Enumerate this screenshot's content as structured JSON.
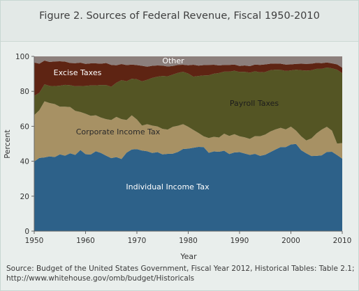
{
  "figure": {
    "title": "Figure 2. Sources of Federal Revenue, Fiscal 1950-2010",
    "source_line1": "Source: Budget of the United States Government, Fiscal Year 2012, Historical Tables: Table 2.1;",
    "source_line2": "http://www.whitehouse.gov/omb/budget/Historicals"
  },
  "chart_data": {
    "type": "area",
    "stacked": true,
    "xlabel": "Year",
    "ylabel": "Percent",
    "xlim": [
      1950,
      2010
    ],
    "ylim": [
      0,
      100
    ],
    "x_ticks": [
      1950,
      1960,
      1970,
      1980,
      1990,
      2000,
      2010
    ],
    "y_ticks": [
      0,
      20,
      40,
      60,
      80,
      100
    ],
    "x": [
      1950,
      1951,
      1952,
      1953,
      1954,
      1955,
      1956,
      1957,
      1958,
      1959,
      1960,
      1961,
      1962,
      1963,
      1964,
      1965,
      1966,
      1967,
      1968,
      1969,
      1970,
      1971,
      1972,
      1973,
      1974,
      1975,
      1976,
      1977,
      1978,
      1979,
      1980,
      1981,
      1982,
      1983,
      1984,
      1985,
      1986,
      1987,
      1988,
      1989,
      1990,
      1991,
      1992,
      1993,
      1994,
      1995,
      1996,
      1997,
      1998,
      1999,
      2000,
      2001,
      2002,
      2003,
      2004,
      2005,
      2006,
      2007,
      2008,
      2009,
      2010
    ],
    "series": [
      {
        "name": "Individual Income Tax",
        "color": "#2d6189",
        "values": [
          39.9,
          41.9,
          42.2,
          42.8,
          42.4,
          43.9,
          43.2,
          44.5,
          43.6,
          46.4,
          44.0,
          43.8,
          45.7,
          44.7,
          43.2,
          41.8,
          42.4,
          41.3,
          44.9,
          46.7,
          46.9,
          46.1,
          45.7,
          44.7,
          45.2,
          43.9,
          44.2,
          44.3,
          45.3,
          47.0,
          47.2,
          47.7,
          48.2,
          48.1,
          44.8,
          45.6,
          45.4,
          46.0,
          44.1,
          45.0,
          45.2,
          44.4,
          43.6,
          44.2,
          43.1,
          43.7,
          45.2,
          46.7,
          48.1,
          48.1,
          49.6,
          49.9,
          46.3,
          44.5,
          43.0,
          43.1,
          43.4,
          45.3,
          45.4,
          43.5,
          41.5
        ]
      },
      {
        "name": "Corporate Income Tax",
        "color": "#a79164",
        "values": [
          26.5,
          27.3,
          32.1,
          30.5,
          30.3,
          27.3,
          28.0,
          26.5,
          25.2,
          21.8,
          23.2,
          22.2,
          20.6,
          20.3,
          20.9,
          21.8,
          23.0,
          22.8,
          18.7,
          19.6,
          17.0,
          14.3,
          15.5,
          15.7,
          14.7,
          14.6,
          13.9,
          15.4,
          15.0,
          14.2,
          12.5,
          10.2,
          8.0,
          6.2,
          8.5,
          8.4,
          8.2,
          9.8,
          10.4,
          10.5,
          9.1,
          9.3,
          9.2,
          10.2,
          11.2,
          11.6,
          11.8,
          11.5,
          11.0,
          10.1,
          10.2,
          7.6,
          8.0,
          7.4,
          10.1,
          12.9,
          14.7,
          14.4,
          12.1,
          6.6,
          8.9
        ]
      },
      {
        "name": "Payroll Taxes",
        "color": "#545524",
        "values": [
          11.0,
          10.0,
          9.7,
          9.8,
          10.3,
          12.0,
          12.5,
          12.5,
          14.1,
          14.8,
          15.9,
          17.4,
          17.1,
          18.6,
          19.5,
          19.0,
          19.5,
          22.3,
          22.2,
          20.9,
          23.0,
          25.3,
          25.4,
          27.3,
          28.5,
          30.3,
          30.5,
          29.9,
          30.3,
          30.0,
          30.5,
          30.5,
          32.6,
          34.8,
          35.9,
          36.1,
          36.9,
          35.5,
          36.8,
          36.3,
          36.8,
          37.5,
          37.9,
          37.1,
          36.6,
          35.8,
          35.1,
          34.2,
          33.2,
          33.5,
          32.2,
          34.9,
          37.8,
          40.0,
          39.0,
          36.9,
          34.8,
          33.9,
          35.7,
          42.3,
          40.0
        ]
      },
      {
        "name": "Excise Taxes",
        "color": "#5e2413",
        "values": [
          19.1,
          16.6,
          13.6,
          13.7,
          14.1,
          14.0,
          13.3,
          12.7,
          13.2,
          13.4,
          12.6,
          12.6,
          12.6,
          12.2,
          12.6,
          12.5,
          10.0,
          9.2,
          9.2,
          8.1,
          8.1,
          8.9,
          7.5,
          6.9,
          6.4,
          5.9,
          5.6,
          4.9,
          4.5,
          4.0,
          4.7,
          6.8,
          5.9,
          5.9,
          5.9,
          5.1,
          4.3,
          3.8,
          3.8,
          3.5,
          3.4,
          3.6,
          3.7,
          3.8,
          4.2,
          4.3,
          3.7,
          3.5,
          3.5,
          3.6,
          3.4,
          3.3,
          3.7,
          3.8,
          3.7,
          3.4,
          3.2,
          2.9,
          2.8,
          3.0,
          3.1
        ]
      },
      {
        "name": "Other",
        "color": "#8c7f7c",
        "values": [
          3.5,
          4.2,
          2.4,
          3.2,
          2.9,
          2.8,
          3.0,
          3.8,
          3.9,
          3.6,
          4.3,
          4.0,
          4.0,
          4.2,
          3.8,
          4.9,
          5.1,
          4.4,
          5.0,
          4.7,
          5.0,
          5.4,
          5.9,
          5.4,
          5.2,
          5.3,
          5.8,
          5.5,
          4.9,
          4.8,
          5.1,
          4.8,
          5.3,
          5.0,
          4.9,
          4.8,
          5.2,
          4.9,
          4.9,
          4.7,
          5.5,
          5.2,
          5.6,
          4.7,
          4.9,
          4.6,
          4.2,
          4.1,
          4.2,
          4.7,
          4.6,
          4.3,
          4.2,
          4.3,
          4.2,
          3.7,
          3.9,
          3.5,
          4.0,
          4.6,
          6.5
        ]
      }
    ]
  }
}
